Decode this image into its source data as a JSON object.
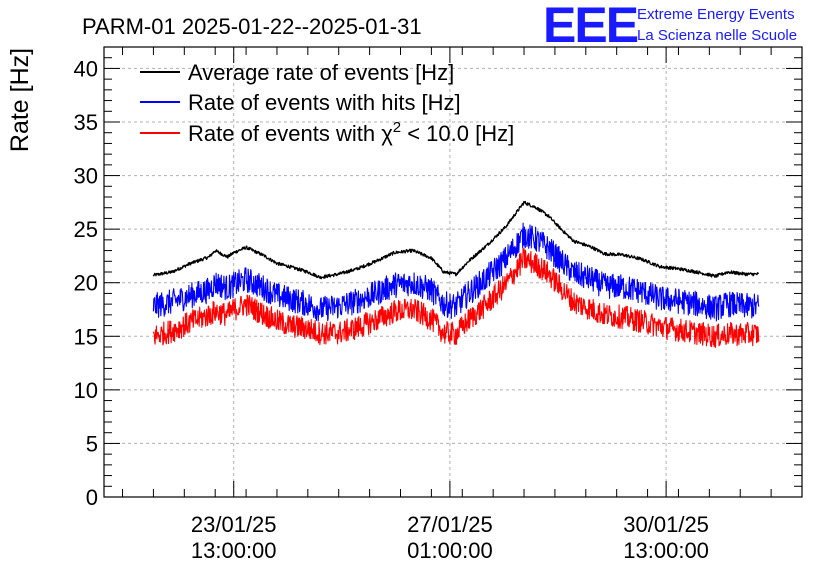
{
  "chart_data": {
    "type": "line",
    "title": "PARM-01 2025-01-22--2025-01-31",
    "ylabel": "Rate [Hz]",
    "xlabel": "",
    "ylim": [
      0,
      42
    ],
    "y_ticks": [
      0,
      5,
      10,
      15,
      20,
      25,
      30,
      35,
      40
    ],
    "x_tick_labels": [
      {
        "date": "23/01/25",
        "time": "13:00:00",
        "day": 1.3
      },
      {
        "date": "27/01/25",
        "time": "01:00:00",
        "day": 4.8
      },
      {
        "date": "30/01/25",
        "time": "13:00:00",
        "day": 8.3
      }
    ],
    "xlim_days": [
      -0.8,
      10.5
    ],
    "grid": true,
    "legend_position": "top-left",
    "series": [
      {
        "name": "Average rate of events [Hz]",
        "color": "#000000",
        "noise": 0.15,
        "x": [
          0.0,
          0.3,
          0.6,
          0.9,
          1.0,
          1.2,
          1.3,
          1.5,
          1.8,
          2.0,
          2.2,
          2.5,
          2.7,
          3.0,
          3.3,
          3.6,
          3.9,
          4.2,
          4.5,
          4.7,
          4.9,
          5.1,
          5.4,
          5.7,
          6.0,
          6.2,
          6.4,
          6.6,
          6.8,
          7.1,
          7.3,
          7.6,
          7.9,
          8.2,
          8.5,
          8.8,
          9.1,
          9.3,
          9.6,
          9.8
        ],
        "values": [
          20.7,
          21.0,
          21.8,
          22.4,
          23.0,
          22.4,
          22.8,
          23.3,
          22.5,
          21.8,
          21.5,
          21.0,
          20.5,
          20.8,
          21.3,
          22.0,
          22.8,
          23.0,
          22.3,
          21.0,
          20.8,
          22.0,
          23.5,
          25.2,
          27.5,
          27.0,
          26.2,
          25.0,
          23.9,
          23.3,
          22.7,
          22.6,
          22.2,
          21.5,
          21.3,
          21.0,
          20.6,
          21.0,
          20.8,
          20.8
        ]
      },
      {
        "name": "Rate of events with hits [Hz]",
        "color": "#0000ff",
        "noise": 1.2,
        "x": [
          0.0,
          0.3,
          0.6,
          0.9,
          1.0,
          1.2,
          1.3,
          1.5,
          1.8,
          2.0,
          2.2,
          2.5,
          2.7,
          3.0,
          3.3,
          3.6,
          3.9,
          4.2,
          4.5,
          4.7,
          4.9,
          5.1,
          5.4,
          5.7,
          6.0,
          6.2,
          6.4,
          6.6,
          6.8,
          7.1,
          7.3,
          7.6,
          7.9,
          8.2,
          8.5,
          8.8,
          9.1,
          9.3,
          9.6,
          9.8
        ],
        "values": [
          17.8,
          18.2,
          18.8,
          19.3,
          20.0,
          19.5,
          19.8,
          20.3,
          19.5,
          18.8,
          18.5,
          18.0,
          17.5,
          17.8,
          18.3,
          19.0,
          19.8,
          20.0,
          19.3,
          18.0,
          17.8,
          19.0,
          20.5,
          22.2,
          24.5,
          24.0,
          23.2,
          22.0,
          20.9,
          20.3,
          19.7,
          19.6,
          19.2,
          18.5,
          18.3,
          18.0,
          17.6,
          18.0,
          17.8,
          17.8
        ]
      },
      {
        "name": "Rate of events with χ² < 10.0 [Hz]",
        "legend_main": "Rate of events with χ",
        "legend_sup": "2",
        "legend_tail": " < 10.0 [Hz]",
        "color": "#ff0000",
        "noise": 1.1,
        "x": [
          0.0,
          0.3,
          0.6,
          0.9,
          1.0,
          1.2,
          1.3,
          1.5,
          1.8,
          2.0,
          2.2,
          2.5,
          2.7,
          3.0,
          3.3,
          3.6,
          3.9,
          4.2,
          4.5,
          4.7,
          4.9,
          5.1,
          5.4,
          5.7,
          6.0,
          6.2,
          6.4,
          6.6,
          6.8,
          7.1,
          7.3,
          7.6,
          7.9,
          8.2,
          8.5,
          8.8,
          9.1,
          9.3,
          9.6,
          9.8
        ],
        "values": [
          15.0,
          15.5,
          16.3,
          17.0,
          17.3,
          17.0,
          17.5,
          18.0,
          17.0,
          16.4,
          16.0,
          15.7,
          15.3,
          15.3,
          15.8,
          16.5,
          17.3,
          17.5,
          16.6,
          15.3,
          15.2,
          16.5,
          18.0,
          19.8,
          22.2,
          21.7,
          20.8,
          19.5,
          18.2,
          17.5,
          17.0,
          16.8,
          16.4,
          15.9,
          15.6,
          15.3,
          15.0,
          15.2,
          15.2,
          15.2
        ]
      }
    ]
  },
  "logo": {
    "mark": "EEE",
    "line1": "Extreme Energy Events",
    "line2": "La Scienza nelle Scuole"
  }
}
